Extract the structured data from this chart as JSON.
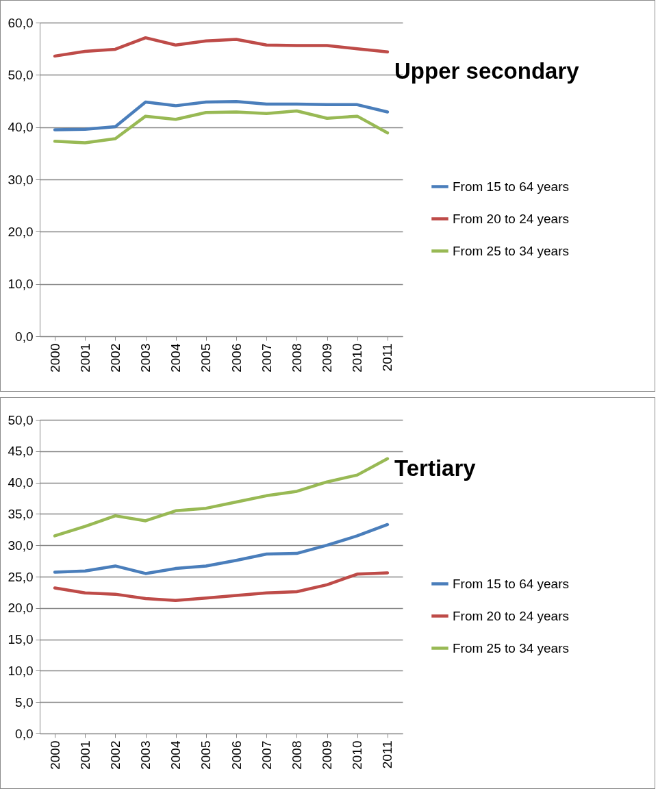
{
  "chart_data": [
    {
      "type": "line",
      "title": "Upper secondary",
      "categories": [
        "2000",
        "2001",
        "2002",
        "2003",
        "2004",
        "2005",
        "2006",
        "2007",
        "2008",
        "2009",
        "2010",
        "2011"
      ],
      "series": [
        {
          "name": "From 15 to 64 years",
          "color": "#4a7ebb",
          "values": [
            39.5,
            39.6,
            40.1,
            44.8,
            44.1,
            44.8,
            44.9,
            44.4,
            44.4,
            44.3,
            44.3,
            42.9
          ]
        },
        {
          "name": "From 20 to 24 years",
          "color": "#be4b48",
          "values": [
            53.6,
            54.5,
            54.9,
            57.1,
            55.7,
            56.5,
            56.8,
            55.7,
            55.6,
            55.6,
            55.0,
            54.4
          ]
        },
        {
          "name": "From 25 to 34 years",
          "color": "#98b954",
          "values": [
            37.3,
            37.0,
            37.8,
            42.1,
            41.5,
            42.8,
            42.9,
            42.6,
            43.1,
            41.7,
            42.1,
            38.9
          ]
        }
      ],
      "ylim": [
        0,
        60
      ],
      "yticks": [
        {
          "value": 0,
          "label": "0,0"
        },
        {
          "value": 10,
          "label": "10,0"
        },
        {
          "value": 20,
          "label": "20,0"
        },
        {
          "value": 30,
          "label": "30,0"
        },
        {
          "value": 40,
          "label": "40,0"
        },
        {
          "value": 50,
          "label": "50,0"
        },
        {
          "value": 60,
          "label": "60,0"
        }
      ],
      "grid": "y",
      "legend": "right"
    },
    {
      "type": "line",
      "title": "Tertiary",
      "categories": [
        "2000",
        "2001",
        "2002",
        "2003",
        "2004",
        "2005",
        "2006",
        "2007",
        "2008",
        "2009",
        "2010",
        "2011"
      ],
      "series": [
        {
          "name": "From 15 to 64 years",
          "color": "#4a7ebb",
          "values": [
            25.7,
            25.9,
            26.7,
            25.5,
            26.3,
            26.7,
            27.6,
            28.6,
            28.7,
            30.0,
            31.5,
            33.3
          ]
        },
        {
          "name": "From 20 to 24 years",
          "color": "#be4b48",
          "values": [
            23.2,
            22.4,
            22.2,
            21.5,
            21.2,
            21.6,
            22.0,
            22.4,
            22.6,
            23.7,
            25.4,
            25.6
          ]
        },
        {
          "name": "From 25 to 34 years",
          "color": "#98b954",
          "values": [
            31.5,
            33.0,
            34.7,
            33.9,
            35.5,
            35.9,
            36.9,
            37.9,
            38.6,
            40.1,
            41.2,
            43.8
          ]
        }
      ],
      "ylim": [
        0,
        50
      ],
      "yticks": [
        {
          "value": 0,
          "label": "0,0"
        },
        {
          "value": 5,
          "label": "5,0"
        },
        {
          "value": 10,
          "label": "10,0"
        },
        {
          "value": 15,
          "label": "15,0"
        },
        {
          "value": 20,
          "label": "20,0"
        },
        {
          "value": 25,
          "label": "25,0"
        },
        {
          "value": 30,
          "label": "30,0"
        },
        {
          "value": 35,
          "label": "35,0"
        },
        {
          "value": 40,
          "label": "40,0"
        },
        {
          "value": 45,
          "label": "45,0"
        },
        {
          "value": 50,
          "label": "50,0"
        }
      ],
      "grid": "y",
      "legend": "right"
    }
  ]
}
